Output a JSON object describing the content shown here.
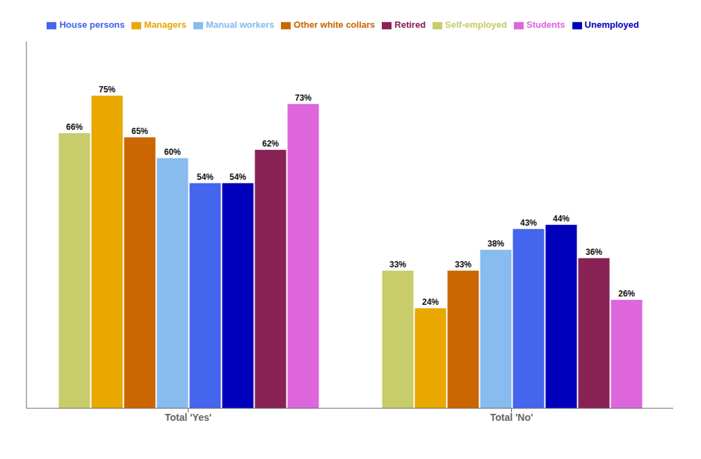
{
  "chart_data": {
    "type": "bar",
    "categories": [
      "Total 'Yes'",
      "Total 'No'"
    ],
    "series": [
      {
        "name": "Self-employed",
        "color": "#c8cc6a",
        "values": [
          66,
          33
        ],
        "value_labels": [
          "66%",
          "33%"
        ]
      },
      {
        "name": "Managers",
        "color": "#e8a800",
        "values": [
          75,
          24
        ],
        "value_labels": [
          "75%",
          "24%"
        ]
      },
      {
        "name": "Other white collars",
        "color": "#cc6600",
        "values": [
          65,
          33
        ],
        "value_labels": [
          "65%",
          "33%"
        ]
      },
      {
        "name": "Manual workers",
        "color": "#88bbee",
        "values": [
          60,
          38
        ],
        "value_labels": [
          "60%",
          "38%"
        ]
      },
      {
        "name": "House persons",
        "color": "#4466ee",
        "values": [
          54,
          43
        ],
        "value_labels": [
          "54%",
          "43%"
        ]
      },
      {
        "name": "Unemployed",
        "color": "#0000bb",
        "values": [
          54,
          44
        ],
        "value_labels": [
          "54%",
          "44%"
        ]
      },
      {
        "name": "Retired",
        "color": "#882255",
        "values": [
          62,
          36
        ],
        "value_labels": [
          "62%",
          "36%"
        ]
      },
      {
        "name": "Students",
        "color": "#dd66dd",
        "values": [
          73,
          26
        ],
        "value_labels": [
          "73%",
          "26%"
        ]
      }
    ],
    "ylim": [
      0,
      88
    ],
    "data_labels": true,
    "legend": "top",
    "grid": false,
    "tick_labels": "x"
  }
}
